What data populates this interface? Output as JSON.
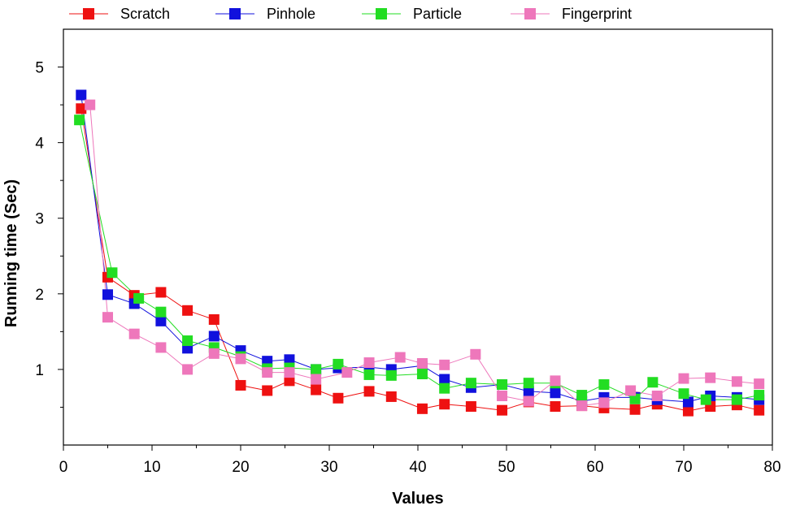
{
  "chart_data": {
    "type": "line",
    "title": "",
    "xlabel": "Values",
    "ylabel": "Running time (Sec)",
    "xlim": [
      0,
      80
    ],
    "ylim": [
      0,
      5.5
    ],
    "xticks": [
      0,
      10,
      20,
      30,
      40,
      50,
      60,
      70,
      80
    ],
    "yticks": [
      1,
      2,
      3,
      4,
      5
    ],
    "grid": false,
    "legend_position": "top",
    "series": [
      {
        "name": "Scratch",
        "color": "#ee1111",
        "x": [
          2,
          5,
          8,
          11,
          14,
          17,
          20,
          23,
          25.5,
          28.5,
          31,
          34.5,
          37,
          40.5,
          43,
          46,
          49.5,
          52.5,
          55.5,
          58.5,
          61,
          64.5,
          67,
          70.5,
          73,
          76,
          78.5
        ],
        "y": [
          4.45,
          2.22,
          1.98,
          2.02,
          1.78,
          1.66,
          0.79,
          0.72,
          0.85,
          0.73,
          0.62,
          0.71,
          0.64,
          0.48,
          0.54,
          0.51,
          0.46,
          0.57,
          0.51,
          0.52,
          0.49,
          0.47,
          0.54,
          0.45,
          0.51,
          0.53,
          0.46
        ]
      },
      {
        "name": "Pinhole",
        "color": "#1111dd",
        "x": [
          2,
          5,
          8,
          11,
          14,
          17,
          20,
          23,
          25.5,
          28.5,
          31,
          34.5,
          37,
          40.5,
          43,
          46,
          49.5,
          52.5,
          55.5,
          58.5,
          61,
          64.5,
          67,
          70.5,
          73,
          76,
          78.5
        ],
        "y": [
          4.63,
          1.99,
          1.87,
          1.64,
          1.28,
          1.44,
          1.25,
          1.11,
          1.13,
          1.0,
          1.02,
          1.03,
          1.0,
          1.05,
          0.87,
          0.76,
          0.8,
          0.71,
          0.69,
          0.58,
          0.63,
          0.63,
          0.6,
          0.57,
          0.65,
          0.63,
          0.6
        ]
      },
      {
        "name": "Particle",
        "color": "#22dd22",
        "x": [
          1.8,
          5.5,
          8.5,
          11,
          14,
          17,
          20,
          23,
          25.5,
          28.5,
          31,
          34.5,
          37,
          40.5,
          43,
          46,
          49.5,
          52.5,
          55.5,
          58.5,
          61,
          64.5,
          66.5,
          70,
          72.5,
          76,
          78.5
        ],
        "y": [
          4.3,
          2.28,
          1.94,
          1.76,
          1.38,
          1.29,
          1.17,
          1.01,
          1.02,
          1.0,
          1.07,
          0.93,
          0.92,
          0.94,
          0.75,
          0.82,
          0.8,
          0.82,
          0.82,
          0.66,
          0.8,
          0.61,
          0.83,
          0.68,
          0.6,
          0.6,
          0.66
        ]
      },
      {
        "name": "Fingerprint",
        "color": "#ee77bb",
        "x": [
          3,
          5,
          8,
          11,
          14,
          17,
          20,
          23,
          25.5,
          28.5,
          32,
          34.5,
          38,
          40.5,
          43,
          46.5,
          49.5,
          52.5,
          55.5,
          58.5,
          61,
          64,
          67,
          70,
          73,
          76,
          78.5
        ],
        "y": [
          4.5,
          1.69,
          1.47,
          1.29,
          1.0,
          1.21,
          1.14,
          0.96,
          0.96,
          0.87,
          0.96,
          1.09,
          1.16,
          1.08,
          1.06,
          1.2,
          0.65,
          0.58,
          0.85,
          0.52,
          0.56,
          0.72,
          0.65,
          0.88,
          0.89,
          0.84,
          0.81
        ]
      }
    ]
  }
}
